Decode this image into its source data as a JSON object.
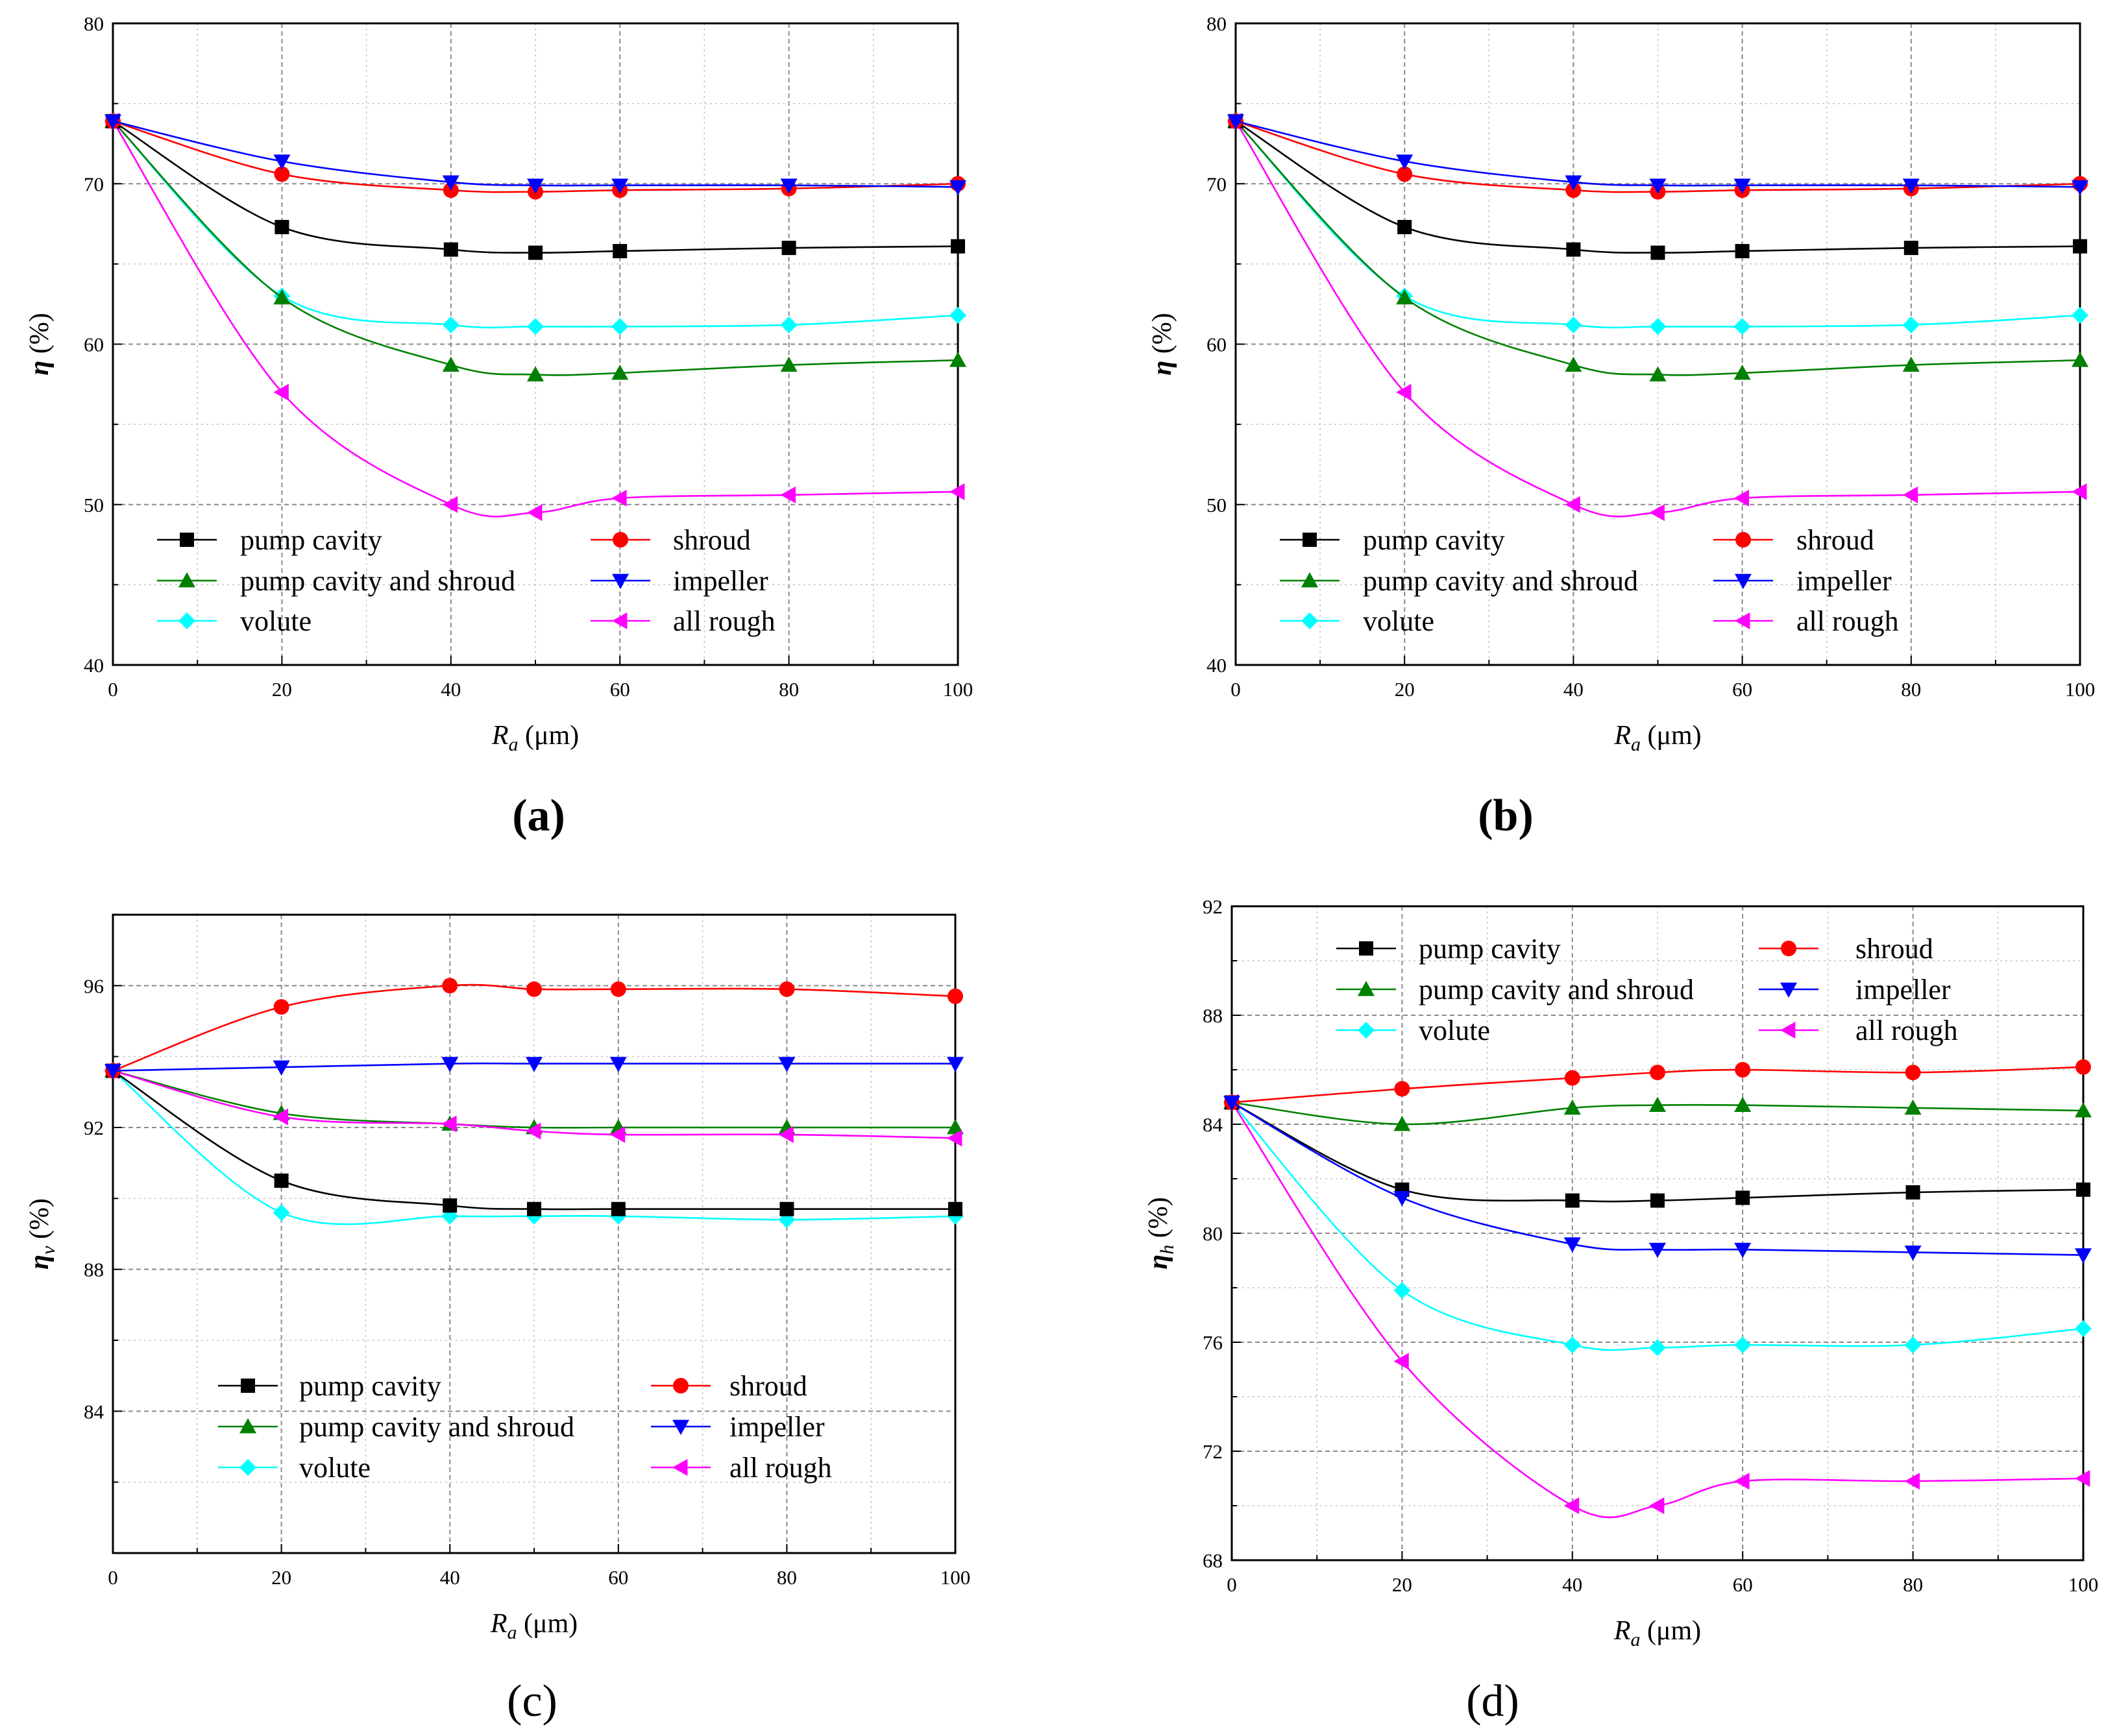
{
  "colors": {
    "pump_cavity": "#000000",
    "shroud": "#ff0000",
    "pump_cavity_and_shroud": "#008000",
    "impeller": "#0000ff",
    "volute": "#00ffff",
    "all_rough": "#ff00ff"
  },
  "chart_data": [
    {
      "type": "line",
      "panel_label": "(a)",
      "ylabel": {
        "symbol": "η",
        "subscript": "",
        "unit": " (%)"
      },
      "xlabel": {
        "symbol": "R",
        "subscript": "a",
        "unit": " (μm)"
      },
      "xlim": [
        0,
        100
      ],
      "ylim": [
        40,
        80
      ],
      "xticks": [
        "0",
        "20",
        "40",
        "60",
        "80",
        "100"
      ],
      "yticks": [
        "40",
        "50",
        "60",
        "70",
        "80"
      ],
      "x": [
        0,
        20,
        40,
        50,
        60,
        80,
        100
      ],
      "series": [
        {
          "name": "pump cavity",
          "key": "pump_cavity",
          "marker": "square",
          "values": [
            73.9,
            67.3,
            65.9,
            65.7,
            65.8,
            66.0,
            66.1
          ]
        },
        {
          "name": "shroud",
          "key": "shroud",
          "marker": "circle",
          "values": [
            73.9,
            70.6,
            69.6,
            69.5,
            69.6,
            69.7,
            70.0
          ]
        },
        {
          "name": "pump cavity and shroud",
          "key": "pump_cavity_and_shroud",
          "marker": "triangle-up",
          "values": [
            73.9,
            62.9,
            58.7,
            58.1,
            58.2,
            58.7,
            59.0
          ]
        },
        {
          "name": "impeller",
          "key": "impeller",
          "marker": "triangle-down",
          "values": [
            73.9,
            71.4,
            70.1,
            69.9,
            69.9,
            69.9,
            69.8
          ]
        },
        {
          "name": "volute",
          "key": "volute",
          "marker": "diamond",
          "values": [
            73.9,
            63.0,
            61.2,
            61.1,
            61.1,
            61.2,
            61.8
          ]
        },
        {
          "name": "all rough",
          "key": "all_rough",
          "marker": "triangle-left",
          "values": [
            73.9,
            57.0,
            50.0,
            49.5,
            50.4,
            50.6,
            50.8
          ]
        }
      ]
    },
    {
      "type": "line",
      "panel_label": "(b)",
      "ylabel": {
        "symbol": "η",
        "subscript": "",
        "unit": " (%)"
      },
      "xlabel": {
        "symbol": "R",
        "subscript": "a",
        "unit": " (μm)"
      },
      "xlim": [
        0,
        100
      ],
      "ylim": [
        40,
        80
      ],
      "xticks": [
        "0",
        "20",
        "40",
        "60",
        "80",
        "100"
      ],
      "yticks": [
        "40",
        "50",
        "60",
        "70",
        "80"
      ],
      "x": [
        0,
        20,
        40,
        50,
        60,
        80,
        100
      ],
      "series": [
        {
          "name": "pump cavity",
          "key": "pump_cavity",
          "marker": "square",
          "values": [
            73.9,
            67.3,
            65.9,
            65.7,
            65.8,
            66.0,
            66.1
          ]
        },
        {
          "name": "shroud",
          "key": "shroud",
          "marker": "circle",
          "values": [
            73.9,
            70.6,
            69.6,
            69.5,
            69.6,
            69.7,
            70.0
          ]
        },
        {
          "name": "pump cavity and shroud",
          "key": "pump_cavity_and_shroud",
          "marker": "triangle-up",
          "values": [
            73.9,
            62.9,
            58.7,
            58.1,
            58.2,
            58.7,
            59.0
          ]
        },
        {
          "name": "impeller",
          "key": "impeller",
          "marker": "triangle-down",
          "values": [
            73.9,
            71.4,
            70.1,
            69.9,
            69.9,
            69.9,
            69.8
          ]
        },
        {
          "name": "volute",
          "key": "volute",
          "marker": "diamond",
          "values": [
            73.9,
            63.0,
            61.2,
            61.1,
            61.1,
            61.2,
            61.8
          ]
        },
        {
          "name": "all rough",
          "key": "all_rough",
          "marker": "triangle-left",
          "values": [
            73.9,
            57.0,
            50.0,
            49.5,
            50.4,
            50.6,
            50.8
          ]
        }
      ]
    },
    {
      "type": "line",
      "panel_label": "(c)",
      "ylabel": {
        "symbol": "η",
        "subscript": "v",
        "unit": " (%)"
      },
      "xlabel": {
        "symbol": "R",
        "subscript": "a",
        "unit": " (μm)"
      },
      "xlim": [
        0,
        100
      ],
      "ylim": [
        80,
        98
      ],
      "xticks": [
        "0",
        "20",
        "40",
        "60",
        "80",
        "100"
      ],
      "yticks": [
        "84",
        "88",
        "92",
        "96"
      ],
      "x": [
        0,
        20,
        40,
        50,
        60,
        80,
        100
      ],
      "series": [
        {
          "name": "pump cavity",
          "key": "pump_cavity",
          "marker": "square",
          "values": [
            93.6,
            90.5,
            89.8,
            89.7,
            89.7,
            89.7,
            89.7
          ]
        },
        {
          "name": "shroud",
          "key": "shroud",
          "marker": "circle",
          "values": [
            93.6,
            95.4,
            96.0,
            95.9,
            95.9,
            95.9,
            95.7
          ]
        },
        {
          "name": "pump cavity and shroud",
          "key": "pump_cavity_and_shroud",
          "marker": "triangle-up",
          "values": [
            93.6,
            92.4,
            92.1,
            92.0,
            92.0,
            92.0,
            92.0
          ]
        },
        {
          "name": "impeller",
          "key": "impeller",
          "marker": "triangle-down",
          "values": [
            93.6,
            93.7,
            93.8,
            93.8,
            93.8,
            93.8,
            93.8
          ]
        },
        {
          "name": "volute",
          "key": "volute",
          "marker": "diamond",
          "values": [
            93.6,
            89.6,
            89.5,
            89.5,
            89.5,
            89.4,
            89.5
          ]
        },
        {
          "name": "all rough",
          "key": "all_rough",
          "marker": "triangle-left",
          "values": [
            93.6,
            92.3,
            92.1,
            91.9,
            91.8,
            91.8,
            91.7
          ]
        }
      ]
    },
    {
      "type": "line",
      "panel_label": "(d)",
      "ylabel": {
        "symbol": "η",
        "subscript": "h",
        "unit": " (%)"
      },
      "xlabel": {
        "symbol": "R",
        "subscript": "a",
        "unit": " (μm)"
      },
      "xlim": [
        0,
        100
      ],
      "ylim": [
        68,
        92
      ],
      "xticks": [
        "0",
        "20",
        "40",
        "60",
        "80",
        "100"
      ],
      "yticks": [
        "68",
        "72",
        "76",
        "80",
        "84",
        "88",
        "92"
      ],
      "x": [
        0,
        20,
        40,
        50,
        60,
        80,
        100
      ],
      "series": [
        {
          "name": "pump cavity",
          "key": "pump_cavity",
          "marker": "square",
          "values": [
            84.8,
            81.6,
            81.2,
            81.2,
            81.3,
            81.5,
            81.6
          ]
        },
        {
          "name": "shroud",
          "key": "shroud",
          "marker": "circle",
          "values": [
            84.8,
            85.3,
            85.7,
            85.9,
            86.0,
            85.9,
            86.1
          ]
        },
        {
          "name": "pump cavity and shroud",
          "key": "pump_cavity_and_shroud",
          "marker": "triangle-up",
          "values": [
            84.8,
            84.0,
            84.6,
            84.7,
            84.7,
            84.6,
            84.5
          ]
        },
        {
          "name": "impeller",
          "key": "impeller",
          "marker": "triangle-down",
          "values": [
            84.8,
            81.3,
            79.6,
            79.4,
            79.4,
            79.3,
            79.2
          ]
        },
        {
          "name": "volute",
          "key": "volute",
          "marker": "diamond",
          "values": [
            84.8,
            77.9,
            75.9,
            75.8,
            75.9,
            75.9,
            76.5
          ]
        },
        {
          "name": "all rough",
          "key": "all_rough",
          "marker": "triangle-left",
          "values": [
            84.8,
            75.3,
            70.0,
            70.0,
            70.9,
            70.9,
            71.0
          ]
        }
      ]
    }
  ]
}
